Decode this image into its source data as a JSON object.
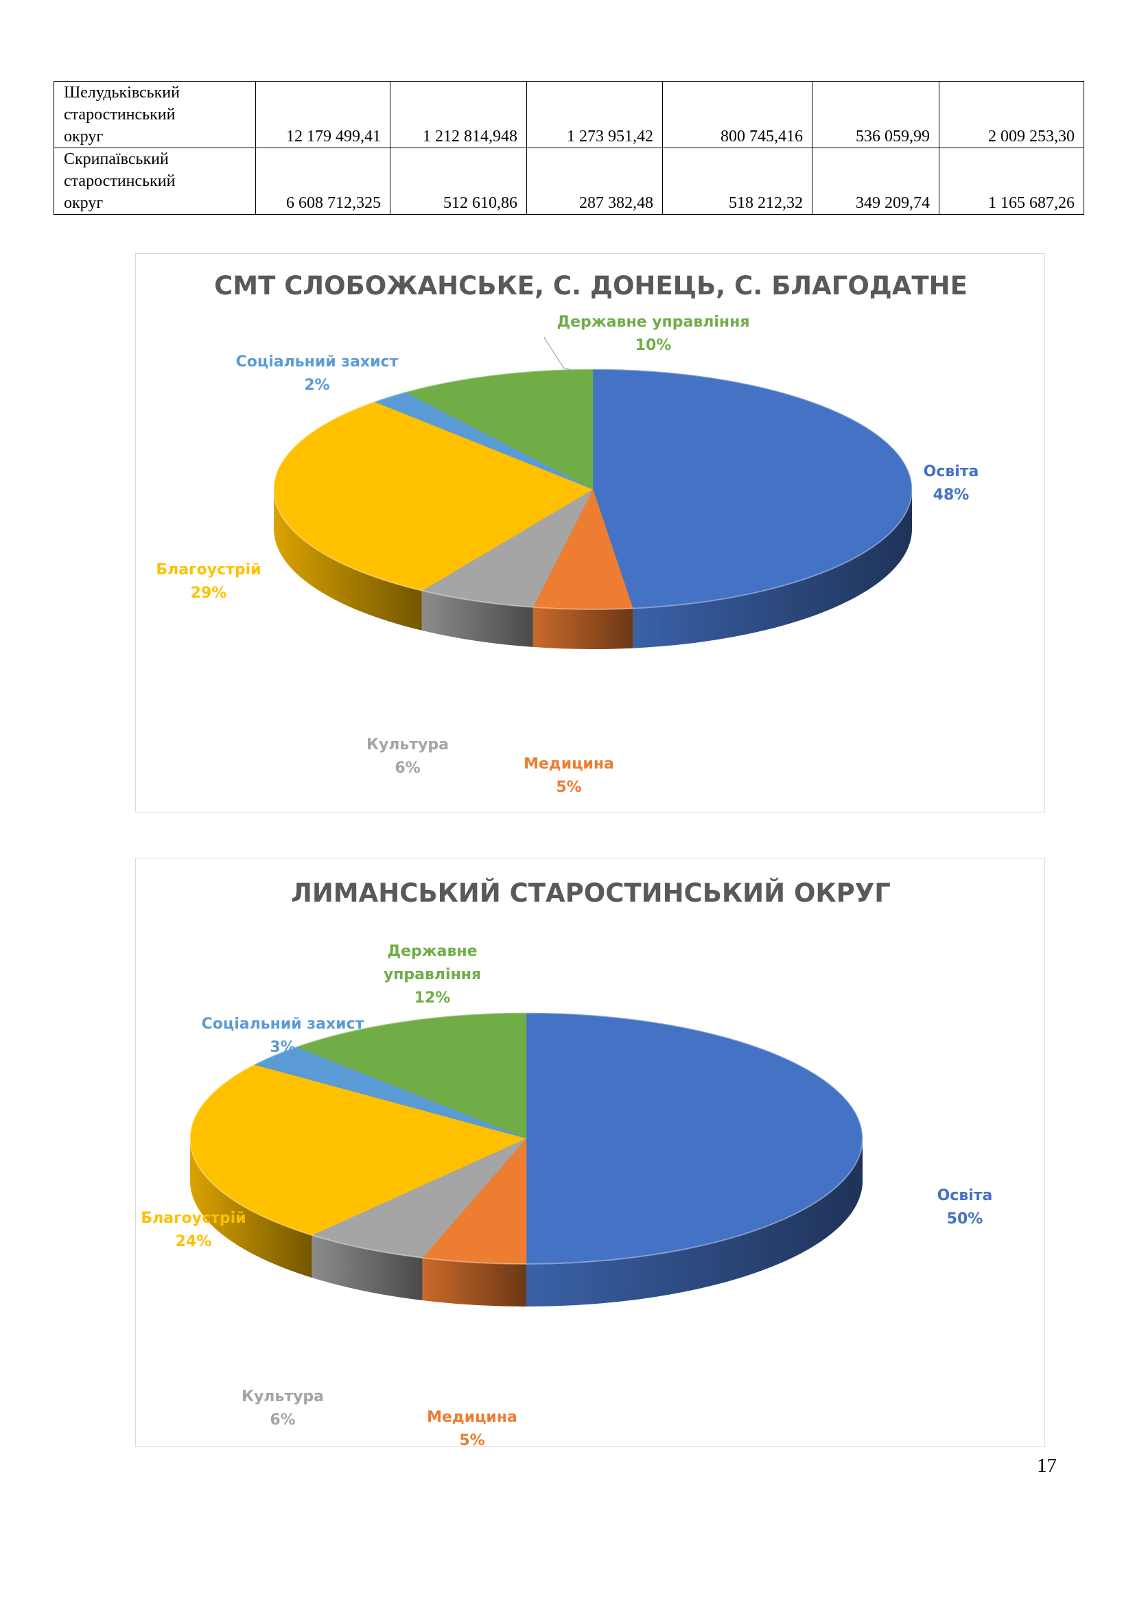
{
  "table": {
    "rows": [
      {
        "name": "Шелудьківський\nстаростинський\nокруг",
        "values": [
          "12 179 499,41",
          "1 212 814,948",
          "1 273 951,42",
          "800 745,416",
          "536 059,99",
          "2 009 253,30"
        ]
      },
      {
        "name": "Скрипаївський\nстаростинський\nокруг",
        "values": [
          "6 608 712,325",
          "512 610,86",
          "287 382,48",
          "518 212,32",
          "349 209,74",
          "1 165 687,26"
        ]
      }
    ]
  },
  "colors": {
    "Освіта": "#4472c4",
    "Медицина": "#ed7d31",
    "Культура": "#a5a5a5",
    "Благоустрій": "#ffc000",
    "Соціальний захист": "#5b9bd5",
    "Державне управління": "#70ad47"
  },
  "chart_data": [
    {
      "type": "pie",
      "title": "СМТ СЛОБОЖАНСЬКЕ, С. ДОНЕЦЬ, С. БЛАГОДАТНЕ",
      "style": "3d",
      "categories": [
        "Освіта",
        "Медицина",
        "Культура",
        "Благоустрій",
        "Соціальний захист",
        "Державне управління"
      ],
      "values": [
        48,
        5,
        6,
        29,
        2,
        10
      ],
      "labels": [
        {
          "category": "Освіта",
          "lines": [
            "Освіта"
          ],
          "percent": "48%"
        },
        {
          "category": "Медицина",
          "lines": [
            "Медицина"
          ],
          "percent": "5%"
        },
        {
          "category": "Культура",
          "lines": [
            "Культура"
          ],
          "percent": "6%"
        },
        {
          "category": "Благоустрій",
          "lines": [
            "Благоустрій"
          ],
          "percent": "29%"
        },
        {
          "category": "Соціальний захист",
          "lines": [
            "Соціальний захист"
          ],
          "percent": "2%"
        },
        {
          "category": "Державне управління",
          "lines": [
            "Державне управління"
          ],
          "percent": "10%"
        }
      ]
    },
    {
      "type": "pie",
      "title": "ЛИМАНСЬКИЙ СТАРОСТИНСЬКИЙ ОКРУГ",
      "style": "3d",
      "categories": [
        "Освіта",
        "Медицина",
        "Культура",
        "Благоустрій",
        "Соціальний захист",
        "Державне управління"
      ],
      "values": [
        50,
        5,
        6,
        24,
        3,
        12
      ],
      "labels": [
        {
          "category": "Освіта",
          "lines": [
            "Освіта"
          ],
          "percent": "50%"
        },
        {
          "category": "Медицина",
          "lines": [
            "Медицина"
          ],
          "percent": "5%"
        },
        {
          "category": "Культура",
          "lines": [
            "Культура"
          ],
          "percent": "6%"
        },
        {
          "category": "Благоустрій",
          "lines": [
            "Благоустрій"
          ],
          "percent": "24%"
        },
        {
          "category": "Соціальний захист",
          "lines": [
            "Соціальний захист"
          ],
          "percent": "3%"
        },
        {
          "category": "Державне управління",
          "lines": [
            "Державне",
            "управління"
          ],
          "percent": "12%"
        }
      ]
    }
  ],
  "page_number": "17"
}
